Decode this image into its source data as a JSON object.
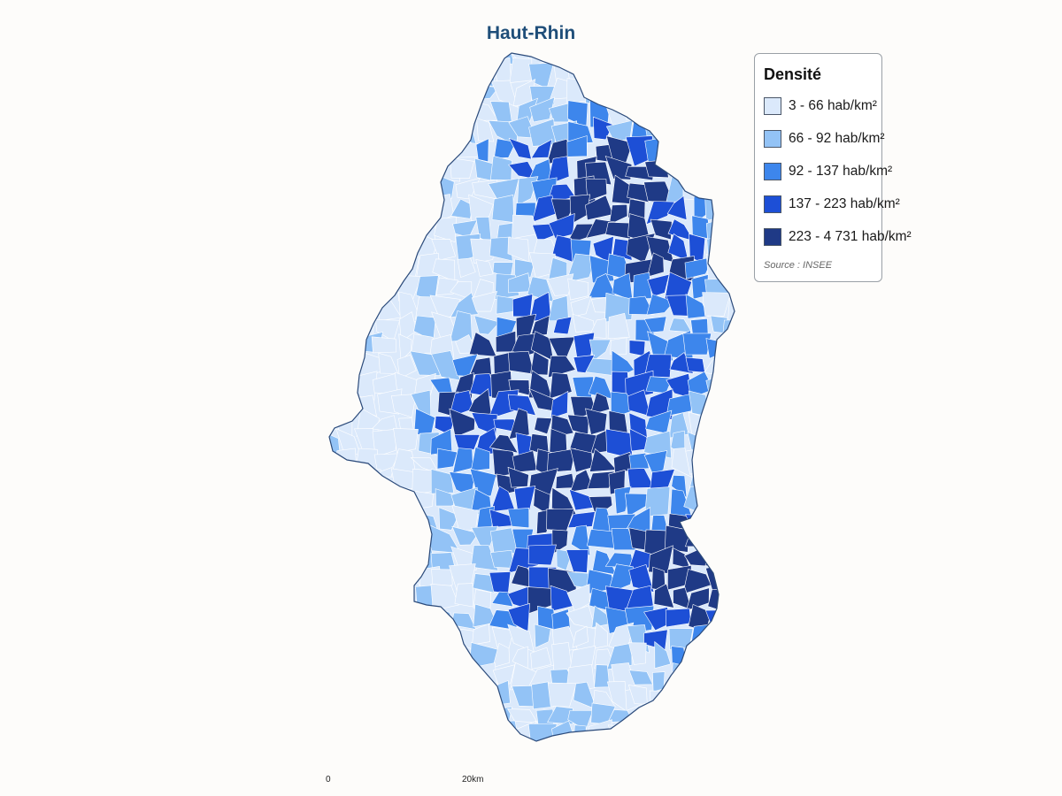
{
  "title": "Haut-Rhin",
  "legend": {
    "title": "Densité",
    "items": [
      {
        "label": "3 - 66 hab/km²",
        "color": "#dbe9fb",
        "min": 3,
        "max": 66
      },
      {
        "label": "66 - 92 hab/km²",
        "color": "#93c3f6",
        "min": 66,
        "max": 92
      },
      {
        "label": "92 - 137 hab/km²",
        "color": "#3d86ec",
        "min": 92,
        "max": 137
      },
      {
        "label": "137 - 223 hab/km²",
        "color": "#1d4fd6",
        "min": 137,
        "max": 223
      },
      {
        "label": "223 - 4 731 hab/km²",
        "color": "#1f3a86",
        "min": 223,
        "max": 4731
      }
    ],
    "source": "Source : INSEE"
  },
  "scale": {
    "start_label": "0",
    "end_label": "20km"
  },
  "colors": {
    "title": "#1f4e79",
    "border": "#2b4a7a",
    "commune_border": "#ffffff"
  }
}
